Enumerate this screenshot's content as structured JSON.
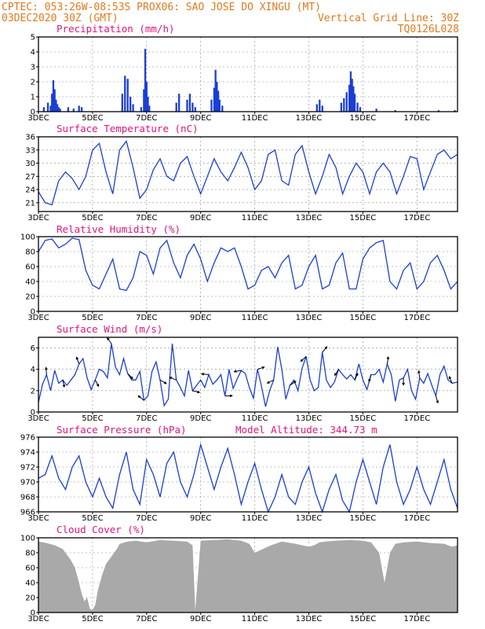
{
  "header": {
    "line1": "CPTEC:   053:26W-08:53S   PROX06: SAO JOSE DO XINGU (MT)",
    "line2_left": "03DEC2020 30Z (GMT)",
    "line2_right": "Vertical Grid Line: 30Z",
    "line3_right": "TQ0126L028",
    "model_altitude": "Model Altitude: 344.73 m"
  },
  "colors": {
    "header": "#e07a1e",
    "title": "#e0157a",
    "series": "#1a3fd6",
    "cloud": "#a9a9a9"
  },
  "x_axis": {
    "start_day": 3,
    "end_day": 18.5,
    "tick_days": [
      3,
      5,
      7,
      9,
      11,
      13,
      15,
      17
    ],
    "tick_labels": [
      "3DEC",
      "5DEC",
      "7DEC",
      "9DEC",
      "11DEC",
      "13DEC",
      "15DEC",
      "17DEC"
    ]
  },
  "chart_data": [
    {
      "type": "bar",
      "title": "Precipitation (mm/h)",
      "ylim": [
        0,
        5
      ],
      "yticks": [
        0,
        1,
        2,
        3,
        4,
        5
      ],
      "bars": [
        [
          3.2,
          0.3
        ],
        [
          3.35,
          0.6
        ],
        [
          3.45,
          0.4
        ],
        [
          3.5,
          1.2
        ],
        [
          3.55,
          2.1
        ],
        [
          3.6,
          1.5
        ],
        [
          3.65,
          0.8
        ],
        [
          3.7,
          0.5
        ],
        [
          3.75,
          0.3
        ],
        [
          3.8,
          0.2
        ],
        [
          4.1,
          0.3
        ],
        [
          4.3,
          0.2
        ],
        [
          4.5,
          0.4
        ],
        [
          4.6,
          0.3
        ],
        [
          6.1,
          1.2
        ],
        [
          6.2,
          2.4
        ],
        [
          6.3,
          2.2
        ],
        [
          6.4,
          1.0
        ],
        [
          6.5,
          0.5
        ],
        [
          6.8,
          0.3
        ],
        [
          6.9,
          1.5
        ],
        [
          6.95,
          4.2
        ],
        [
          7.0,
          2.0
        ],
        [
          7.05,
          1.0
        ],
        [
          7.1,
          0.4
        ],
        [
          8.1,
          0.6
        ],
        [
          8.2,
          1.2
        ],
        [
          8.5,
          0.8
        ],
        [
          8.6,
          1.2
        ],
        [
          8.7,
          0.6
        ],
        [
          8.8,
          0.3
        ],
        [
          9.4,
          0.8
        ],
        [
          9.5,
          1.6
        ],
        [
          9.55,
          2.8
        ],
        [
          9.6,
          2.0
        ],
        [
          9.65,
          1.4
        ],
        [
          9.7,
          0.8
        ],
        [
          9.8,
          0.4
        ],
        [
          13.3,
          0.5
        ],
        [
          13.4,
          0.8
        ],
        [
          13.5,
          0.4
        ],
        [
          14.2,
          0.6
        ],
        [
          14.3,
          0.9
        ],
        [
          14.4,
          1.3
        ],
        [
          14.5,
          1.8
        ],
        [
          14.55,
          2.7
        ],
        [
          14.6,
          2.2
        ],
        [
          14.65,
          1.7
        ],
        [
          14.7,
          1.2
        ],
        [
          14.8,
          0.6
        ],
        [
          14.9,
          0.3
        ],
        [
          15.5,
          0.2
        ],
        [
          16.2,
          0.1
        ],
        [
          17.8,
          0.1
        ],
        [
          18.4,
          0.1
        ]
      ]
    },
    {
      "type": "line",
      "title": "Surface Temperature (nC)",
      "ylim": [
        19,
        36
      ],
      "yticks": [
        21,
        24,
        27,
        30,
        33,
        36
      ],
      "x": [
        3,
        3.25,
        3.5,
        3.75,
        4,
        4.25,
        4.5,
        4.75,
        5,
        5.25,
        5.5,
        5.75,
        6,
        6.25,
        6.5,
        6.75,
        7,
        7.25,
        7.5,
        7.75,
        8,
        8.25,
        8.5,
        8.75,
        9,
        9.25,
        9.5,
        9.75,
        10,
        10.25,
        10.5,
        10.75,
        11,
        11.25,
        11.5,
        11.75,
        12,
        12.25,
        12.5,
        12.75,
        13,
        13.25,
        13.5,
        13.75,
        14,
        14.25,
        14.5,
        14.75,
        15,
        15.25,
        15.5,
        15.75,
        16,
        16.25,
        16.5,
        16.75,
        17,
        17.25,
        17.5,
        17.75,
        18,
        18.25,
        18.5
      ],
      "values": [
        23.5,
        21,
        20.5,
        26,
        28,
        26.5,
        24,
        27,
        33,
        34.5,
        28,
        23,
        33,
        35,
        29,
        22,
        24,
        28.5,
        31,
        27,
        26,
        30,
        31.5,
        27,
        23,
        27,
        31,
        28,
        26,
        29,
        32.5,
        29,
        24,
        26,
        32,
        33,
        26,
        25,
        32,
        34,
        28,
        23,
        27,
        32,
        29,
        23,
        27,
        30,
        28,
        23,
        28,
        30,
        28,
        23,
        27,
        31.5,
        31,
        24,
        28,
        32,
        33,
        31,
        32
      ]
    },
    {
      "type": "line",
      "title": "Relative Humidity (%)",
      "ylim": [
        0,
        100
      ],
      "yticks": [
        0,
        20,
        40,
        60,
        80,
        100
      ],
      "x": [
        3,
        3.25,
        3.5,
        3.75,
        4,
        4.25,
        4.5,
        4.75,
        5,
        5.25,
        5.5,
        5.75,
        6,
        6.25,
        6.5,
        6.75,
        7,
        7.25,
        7.5,
        7.75,
        8,
        8.25,
        8.5,
        8.75,
        9,
        9.25,
        9.5,
        9.75,
        10,
        10.25,
        10.5,
        10.75,
        11,
        11.25,
        11.5,
        11.75,
        12,
        12.25,
        12.5,
        12.75,
        13,
        13.25,
        13.5,
        13.75,
        14,
        14.25,
        14.5,
        14.75,
        15,
        15.25,
        15.5,
        15.75,
        16,
        16.25,
        16.5,
        16.75,
        17,
        17.25,
        17.5,
        17.75,
        18,
        18.25,
        18.5
      ],
      "values": [
        80,
        95,
        97,
        85,
        90,
        98,
        96,
        55,
        35,
        30,
        50,
        70,
        30,
        28,
        45,
        80,
        75,
        50,
        85,
        95,
        65,
        45,
        75,
        90,
        70,
        40,
        65,
        85,
        80,
        85,
        60,
        30,
        35,
        55,
        60,
        45,
        65,
        75,
        30,
        35,
        60,
        75,
        30,
        35,
        65,
        78,
        30,
        30,
        70,
        85,
        92,
        95,
        40,
        30,
        55,
        65,
        30,
        40,
        65,
        75,
        55,
        30,
        40
      ]
    },
    {
      "type": "line",
      "title": "Surface Wind (m/s)",
      "ylim": [
        0,
        7
      ],
      "yticks": [
        0,
        2,
        4,
        6
      ],
      "x": [
        3,
        3.15,
        3.3,
        3.45,
        3.6,
        3.75,
        3.9,
        4.05,
        4.2,
        4.35,
        4.5,
        4.65,
        4.8,
        4.95,
        5.1,
        5.25,
        5.4,
        5.55,
        5.7,
        5.85,
        6,
        6.15,
        6.3,
        6.45,
        6.6,
        6.75,
        6.9,
        7.05,
        7.2,
        7.35,
        7.5,
        7.65,
        7.8,
        7.95,
        8.1,
        8.25,
        8.4,
        8.55,
        8.7,
        8.85,
        9,
        9.15,
        9.3,
        9.45,
        9.6,
        9.75,
        9.9,
        10.05,
        10.2,
        10.35,
        10.5,
        10.65,
        10.8,
        10.95,
        11.1,
        11.25,
        11.4,
        11.55,
        11.7,
        11.85,
        12,
        12.15,
        12.3,
        12.45,
        12.6,
        12.75,
        12.9,
        13.05,
        13.2,
        13.35,
        13.5,
        13.65,
        13.8,
        13.95,
        14.1,
        14.25,
        14.4,
        14.55,
        14.7,
        14.85,
        15,
        15.15,
        15.3,
        15.45,
        15.6,
        15.75,
        15.9,
        16.05,
        16.2,
        16.35,
        16.5,
        16.65,
        16.8,
        16.95,
        17.1,
        17.25,
        17.4,
        17.55,
        17.7,
        17.85,
        18,
        18.15,
        18.3,
        18.5
      ],
      "values": [
        0.9,
        2.6,
        3.5,
        2.0,
        3.9,
        2.7,
        3.0,
        2.5,
        3.0,
        3.5,
        4.5,
        5.0,
        3.2,
        2.1,
        3.0,
        4.0,
        3.8,
        3.2,
        6.4,
        4.2,
        3.5,
        5.0,
        3.6,
        3.0,
        3.0,
        3.8,
        1.1,
        1.5,
        3.8,
        4.7,
        3.0,
        0.6,
        1.2,
        6.4,
        3.0,
        2.3,
        1.5,
        3.9,
        2.0,
        2.5,
        3.0,
        2.3,
        3.5,
        2.6,
        3.0,
        3.5,
        1.5,
        4.0,
        2.2,
        3.1,
        3.9,
        3.6,
        2.3,
        1.3,
        4.0,
        2.4,
        0.5,
        2.0,
        3.0,
        6.1,
        4.0,
        1.2,
        2.5,
        3.0,
        2.0,
        4.1,
        5.2,
        3.0,
        2.0,
        2.3,
        5.6,
        3.0,
        2.3,
        2.8,
        4.0,
        3.5,
        3.1,
        3.5,
        3.0,
        4.5,
        3.0,
        2.1,
        3.5,
        3.5,
        4.0,
        2.8,
        4.5,
        3.5,
        1.0,
        3.0,
        3.2,
        4.0,
        2.0,
        1.2,
        3.2,
        2.7,
        3.6,
        2.5,
        1.5,
        3.5,
        4.3,
        3.0,
        2.7,
        2.8
      ]
    },
    {
      "type": "line",
      "title": "Surface Pressure (hPa)",
      "ylim": [
        966,
        976
      ],
      "yticks": [
        966,
        968,
        970,
        972,
        974,
        976
      ],
      "x": [
        3,
        3.25,
        3.5,
        3.75,
        4,
        4.25,
        4.5,
        4.75,
        5,
        5.25,
        5.5,
        5.75,
        6,
        6.25,
        6.5,
        6.75,
        7,
        7.25,
        7.5,
        7.75,
        8,
        8.25,
        8.5,
        8.75,
        9,
        9.25,
        9.5,
        9.75,
        10,
        10.25,
        10.5,
        10.75,
        11,
        11.25,
        11.5,
        11.75,
        12,
        12.25,
        12.5,
        12.75,
        13,
        13.25,
        13.5,
        13.75,
        14,
        14.25,
        14.5,
        14.75,
        15,
        15.25,
        15.5,
        15.75,
        16,
        16.25,
        16.5,
        16.75,
        17,
        17.25,
        17.5,
        17.75,
        18,
        18.25,
        18.5
      ],
      "values": [
        970.5,
        971,
        973.5,
        970.5,
        969,
        972,
        973.5,
        970,
        968,
        970.5,
        968,
        966.5,
        971,
        974,
        969,
        967,
        973,
        971,
        968,
        972.5,
        974,
        970,
        968,
        971,
        975,
        972,
        969,
        972,
        974.5,
        971,
        967,
        970,
        972.5,
        969,
        966,
        968,
        971,
        968,
        967,
        970,
        972,
        968.5,
        966,
        969,
        971,
        967.5,
        966,
        970,
        973,
        970,
        967,
        972,
        975,
        970,
        967,
        969,
        972,
        969,
        967,
        970,
        973,
        969,
        966.5
      ]
    },
    {
      "type": "area",
      "title": "Cloud Cover (%)",
      "ylim": [
        0,
        100
      ],
      "yticks": [
        0,
        20,
        40,
        60,
        80,
        100
      ],
      "x": [
        3,
        3.3,
        3.6,
        3.9,
        4.2,
        4.35,
        4.5,
        4.6,
        4.7,
        4.8,
        4.9,
        5.0,
        5.1,
        5.2,
        5.35,
        5.5,
        5.7,
        5.9,
        6.0,
        6.3,
        6.6,
        7.0,
        7.5,
        8.0,
        8.5,
        8.7,
        8.8,
        9.0,
        9.5,
        10.0,
        10.5,
        10.8,
        11.0,
        11.3,
        11.6,
        12.0,
        12.5,
        13.0,
        13.2,
        13.4,
        13.6,
        14.0,
        14.5,
        15.0,
        15.3,
        15.6,
        15.7,
        15.8,
        15.9,
        16.0,
        16.2,
        16.5,
        17.0,
        17.5,
        18.0,
        18.3,
        18.5
      ],
      "values": [
        95,
        93,
        90,
        85,
        70,
        60,
        40,
        25,
        15,
        20,
        5,
        3,
        10,
        30,
        50,
        65,
        75,
        85,
        92,
        95,
        96,
        94,
        97,
        96,
        95,
        90,
        3,
        96,
        97,
        98,
        96,
        92,
        80,
        85,
        90,
        95,
        92,
        88,
        90,
        94,
        95,
        96,
        97,
        96,
        94,
        80,
        60,
        40,
        60,
        80,
        92,
        94,
        95,
        93,
        92,
        88,
        90
      ]
    }
  ],
  "panels": [
    {
      "title": "Precipitation (mm/h)"
    },
    {
      "title": "Surface Temperature (nC)"
    },
    {
      "title": "Relative Humidity (%)"
    },
    {
      "title": "Surface Wind (m/s)"
    },
    {
      "title": "Surface Pressure (hPa)"
    },
    {
      "title": "Cloud Cover (%)"
    }
  ]
}
